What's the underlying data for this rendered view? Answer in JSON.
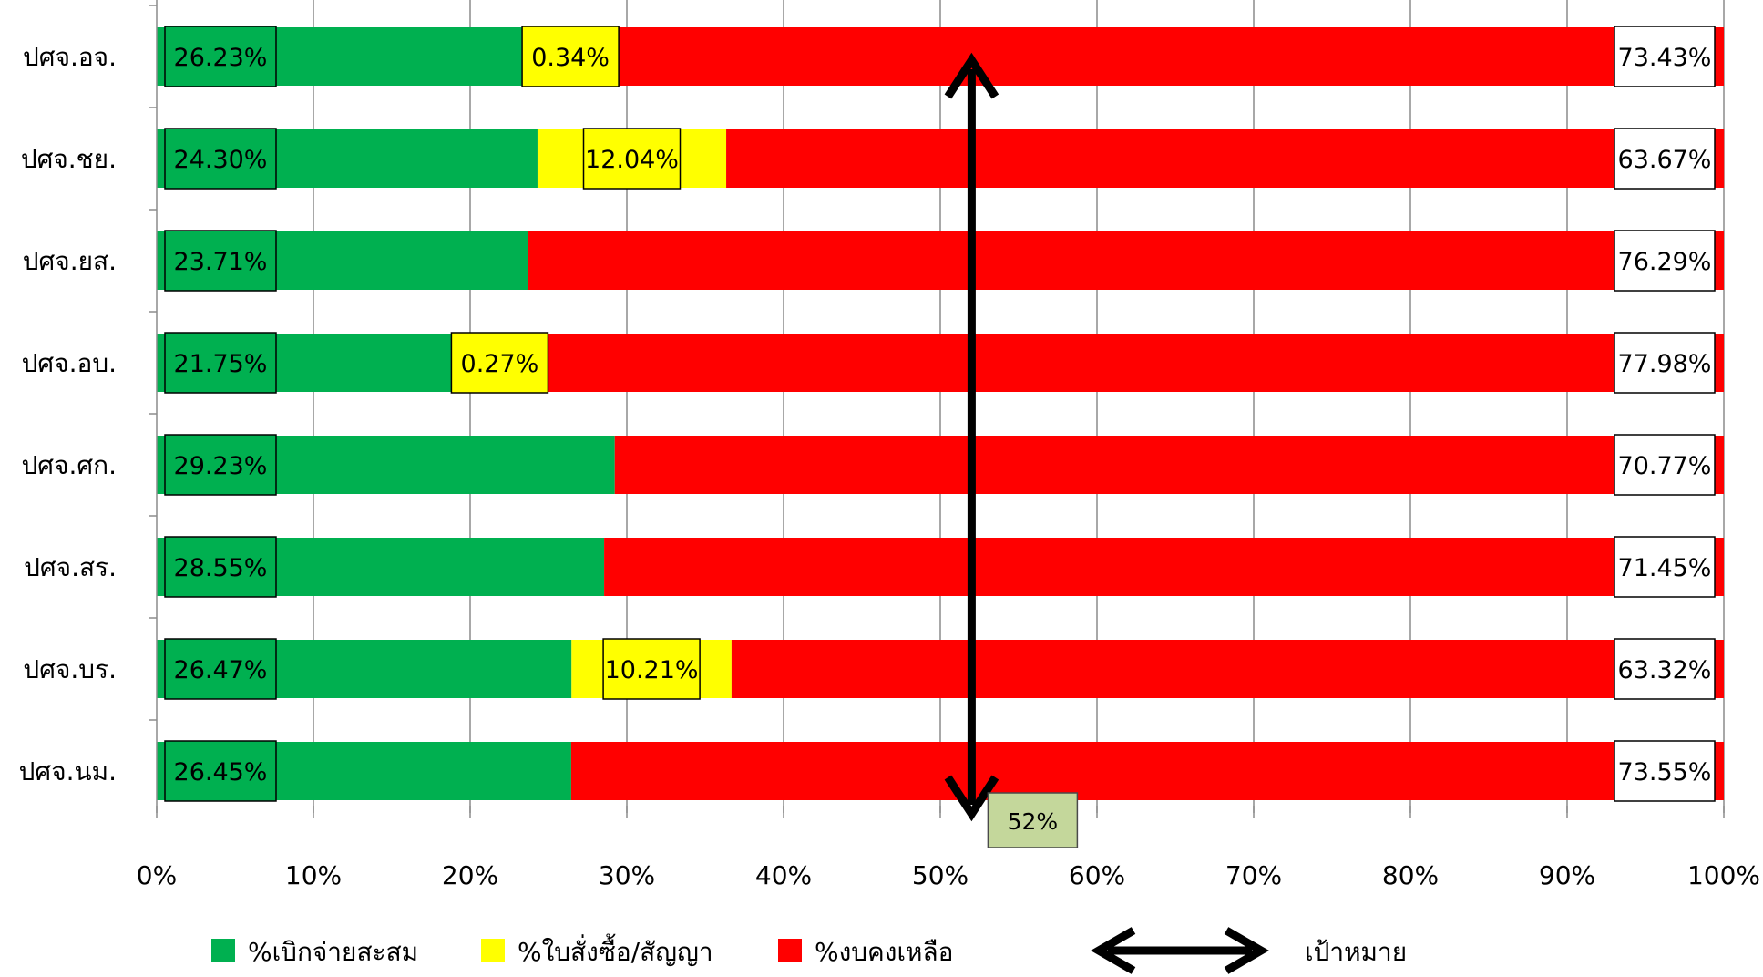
{
  "chart_data": {
    "type": "bar",
    "orientation": "horizontal",
    "stacked": "percent",
    "title": "",
    "categories": [
      "ปศจ.อจ.",
      "ปศจ.ชย.",
      "ปศจ.ยส.",
      "ปศจ.อบ.",
      "ปศจ.ศก.",
      "ปศจ.สร.",
      "ปศจ.บร.",
      "ปศจ.นม."
    ],
    "series": [
      {
        "name": "%เบิกจ่ายสะสม",
        "color": "#00b050",
        "values": [
          26.23,
          24.3,
          23.71,
          21.75,
          29.23,
          28.55,
          26.47,
          26.45
        ],
        "labels": [
          "26.23%",
          "24.30%",
          "23.71%",
          "21.75%",
          "29.23%",
          "28.55%",
          "26.47%",
          "26.45%"
        ]
      },
      {
        "name": "%ใบสั่งซื้อ/สัญญา",
        "color": "#ffff00",
        "values": [
          0.34,
          12.04,
          0,
          0.27,
          0,
          0,
          10.21,
          0
        ],
        "labels": [
          "0.34%",
          "12.04%",
          "",
          "0.27%",
          "",
          "",
          "10.21%",
          ""
        ]
      },
      {
        "name": "%งบคงเหลือ",
        "color": "#ff0000",
        "values": [
          73.43,
          63.67,
          76.29,
          77.98,
          70.77,
          71.45,
          63.32,
          73.55
        ],
        "labels": [
          "73.43%",
          "63.67%",
          "76.29%",
          "77.98%",
          "70.77%",
          "71.45%",
          "63.32%",
          "73.55%"
        ]
      }
    ],
    "x_ticks": [
      "0%",
      "10%",
      "20%",
      "30%",
      "40%",
      "50%",
      "60%",
      "70%",
      "80%",
      "90%",
      "100%"
    ],
    "xlim": [
      0,
      100
    ],
    "grid": true,
    "legend_position": "bottom",
    "target": {
      "name": "เป้าหมาย",
      "value": 52,
      "label": "52%",
      "label_color": "#c4d79b"
    }
  }
}
